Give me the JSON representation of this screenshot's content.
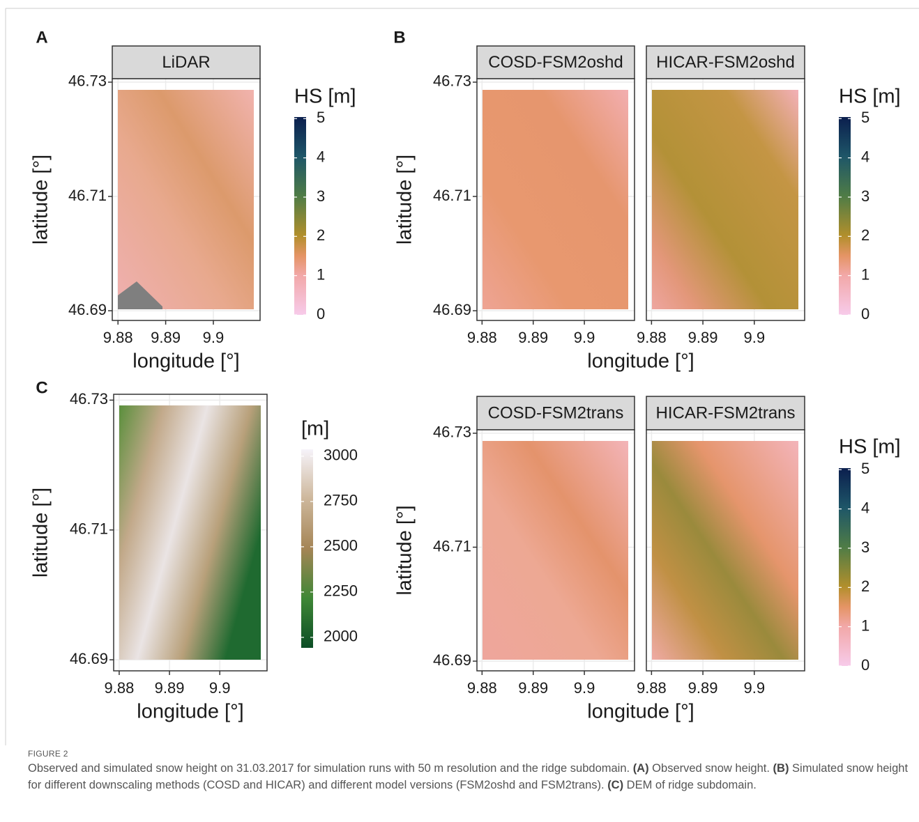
{
  "figure": {
    "panels": [
      {
        "label": "A",
        "facets": [
          "LiDAR"
        ],
        "xlabel": "longitude [°]",
        "ylabel": "latitude [°]",
        "xlim": [
          9.8788,
          9.9098
        ],
        "ylim": [
          46.6883,
          46.7306
        ],
        "xticks": [
          9.88,
          9.89,
          9.9
        ],
        "yticks": [
          46.73,
          46.71,
          46.69
        ],
        "legend": {
          "title": "HS [m]",
          "lim": [
            0,
            5.04
          ],
          "ticks": [
            0,
            1,
            2,
            3,
            4,
            5
          ]
        }
      },
      {
        "label": "B",
        "facets": [
          "COSD-FSM2oshd",
          "HICAR-FSM2oshd"
        ],
        "xlabel": "longitude [°]",
        "ylabel": "latitude [°]",
        "xlim": [
          9.879,
          9.9098
        ],
        "ylim": [
          46.6883,
          46.7306
        ],
        "xticks": [
          9.88,
          9.89,
          9.9
        ],
        "yticks": [
          46.73,
          46.71,
          46.69
        ],
        "legend": {
          "title": "HS [m]",
          "lim": [
            0,
            5.04
          ],
          "ticks": [
            0,
            1,
            2,
            3,
            4,
            5
          ]
        }
      },
      {
        "facets": [
          "COSD-FSM2trans",
          "HICAR-FSM2trans"
        ],
        "xlabel": "longitude [°]",
        "ylabel": "latitude [°]",
        "xlim": [
          9.879,
          9.9098
        ],
        "ylim": [
          46.6883,
          46.7306
        ],
        "xticks": [
          9.88,
          9.89,
          9.9
        ],
        "yticks": [
          46.73,
          46.71,
          46.69
        ],
        "legend": {
          "title": "HS [m]",
          "lim": [
            0,
            5.04
          ],
          "ticks": [
            0,
            1,
            2,
            3,
            4,
            5
          ]
        }
      },
      {
        "label": "C",
        "facets": [],
        "xlabel": "longitude [°]",
        "ylabel": "latitude [°]",
        "xlim": [
          9.8789,
          9.9094
        ],
        "ylim": [
          46.6883,
          46.7309
        ],
        "xticks": [
          9.88,
          9.89,
          9.9
        ],
        "yticks": [
          46.73,
          46.71,
          46.69
        ],
        "legend": {
          "title": "[m]",
          "lim": [
            1942,
            3038
          ],
          "ticks": [
            2000,
            2250,
            2500,
            2750,
            3000
          ]
        }
      }
    ],
    "caption": {
      "number": "FIGURE 2",
      "parts": [
        {
          "text": "Observed and simulated snow height on 31.03.2017 for simulation runs with 50 m resolution and the ridge subdomain. ",
          "bold": false
        },
        {
          "text": "(A)",
          "bold": true
        },
        {
          "text": " Observed snow height. ",
          "bold": false
        },
        {
          "text": "(B)",
          "bold": true
        },
        {
          "text": " Simulated snow height for different downscaling methods (COSD and HICAR) and different model versions (FSM2oshd and FSM2trans). ",
          "bold": false
        },
        {
          "text": "(C)",
          "bold": true
        },
        {
          "text": " DEM of ridge subdomain.",
          "bold": false
        }
      ]
    }
  }
}
